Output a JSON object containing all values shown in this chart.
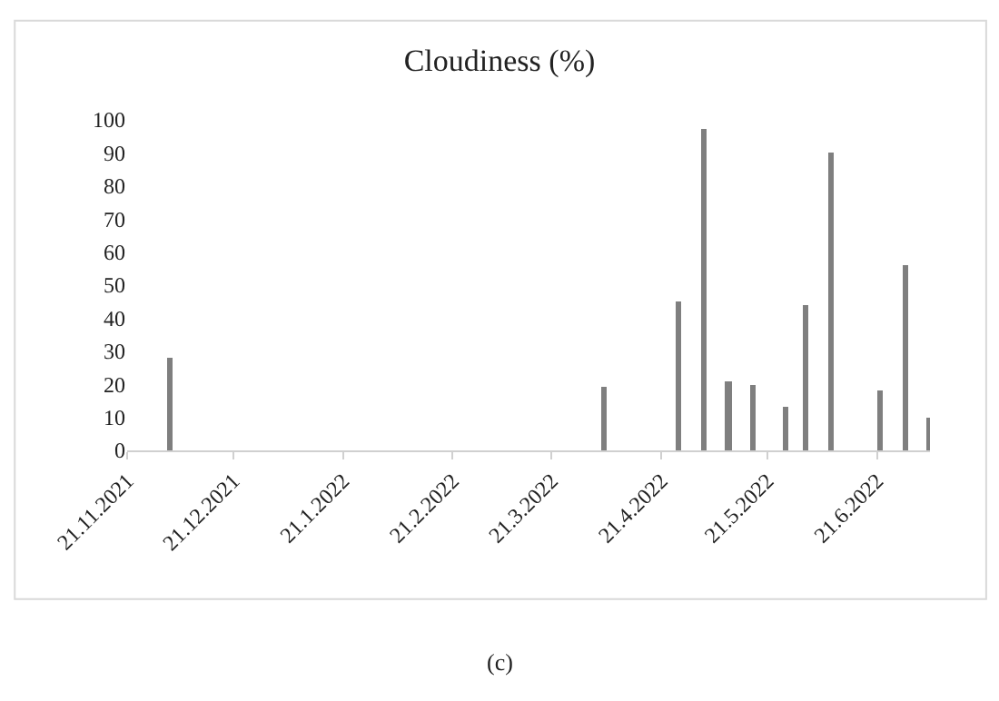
{
  "chart_data": {
    "type": "bar",
    "title": "Cloudiness (%)",
    "x": [
      "2021-12-03",
      "2022-04-05",
      "2022-04-26",
      "2022-05-03",
      "2022-05-10",
      "2022-05-17",
      "2022-05-26",
      "2022-06-01",
      "2022-06-08",
      "2022-06-22",
      "2022-06-29",
      "2022-07-06"
    ],
    "values": [
      28,
      19,
      45,
      97,
      21,
      20,
      13,
      44,
      90,
      18,
      56,
      10
    ],
    "color": "#7f7f7f",
    "xlim": [
      "2021-11-21",
      "2022-07-06"
    ],
    "xticks": [
      {
        "value": "2021-11-21",
        "label": "21.11.2021"
      },
      {
        "value": "2021-12-21",
        "label": "21.12.2021"
      },
      {
        "value": "2022-01-21",
        "label": "21.1.2022"
      },
      {
        "value": "2022-02-21",
        "label": "21.2.2022"
      },
      {
        "value": "2022-03-21",
        "label": "21.3.2022"
      },
      {
        "value": "2022-04-21",
        "label": "21.4.2022"
      },
      {
        "value": "2022-05-21",
        "label": "21.5.2022"
      },
      {
        "value": "2022-06-21",
        "label": "21.6.2022"
      }
    ],
    "ylim": [
      0,
      100
    ],
    "yticks": [
      0,
      10,
      20,
      30,
      40,
      50,
      60,
      70,
      80,
      90,
      100
    ],
    "grid": false,
    "legend": false,
    "annotations": [
      "(c)"
    ]
  }
}
